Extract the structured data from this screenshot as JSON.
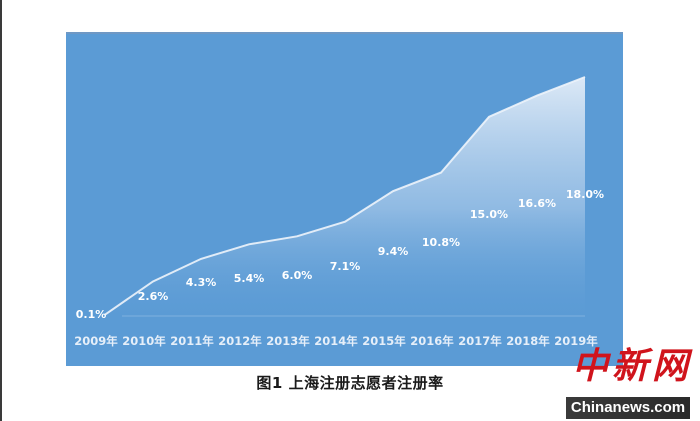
{
  "chart_data": {
    "type": "area",
    "title": "图1 上海注册志愿者注册率",
    "xlabel": "",
    "ylabel": "",
    "categories": [
      "2009年",
      "2010年",
      "2011年",
      "2012年",
      "2013年",
      "2014年",
      "2015年",
      "2016年",
      "2017年",
      "2018年",
      "2019年"
    ],
    "series": [
      {
        "name": "上海注册志愿者注册率",
        "values": [
          0.1,
          2.6,
          4.3,
          5.4,
          6.0,
          7.1,
          9.4,
          10.8,
          15.0,
          16.6,
          18.0
        ]
      }
    ],
    "data_labels": [
      "0.1%",
      "2.6%",
      "4.3%",
      "5.4%",
      "6.0%",
      "7.1%",
      "9.4%",
      "10.8%",
      "15.0%",
      "16.6%",
      "18.0%"
    ],
    "ylim": [
      0,
      20
    ],
    "grid": false,
    "legend": "none"
  },
  "caption": "图1  上海注册志愿者注册率",
  "watermark": {
    "cn": "中新网",
    "en": "Chinanews.com"
  },
  "colors": {
    "panel_bg": "#5b9bd5",
    "area_fill_top": "#dce8f5",
    "label_text": "#ffffff",
    "watermark_red": "#d0141c"
  }
}
